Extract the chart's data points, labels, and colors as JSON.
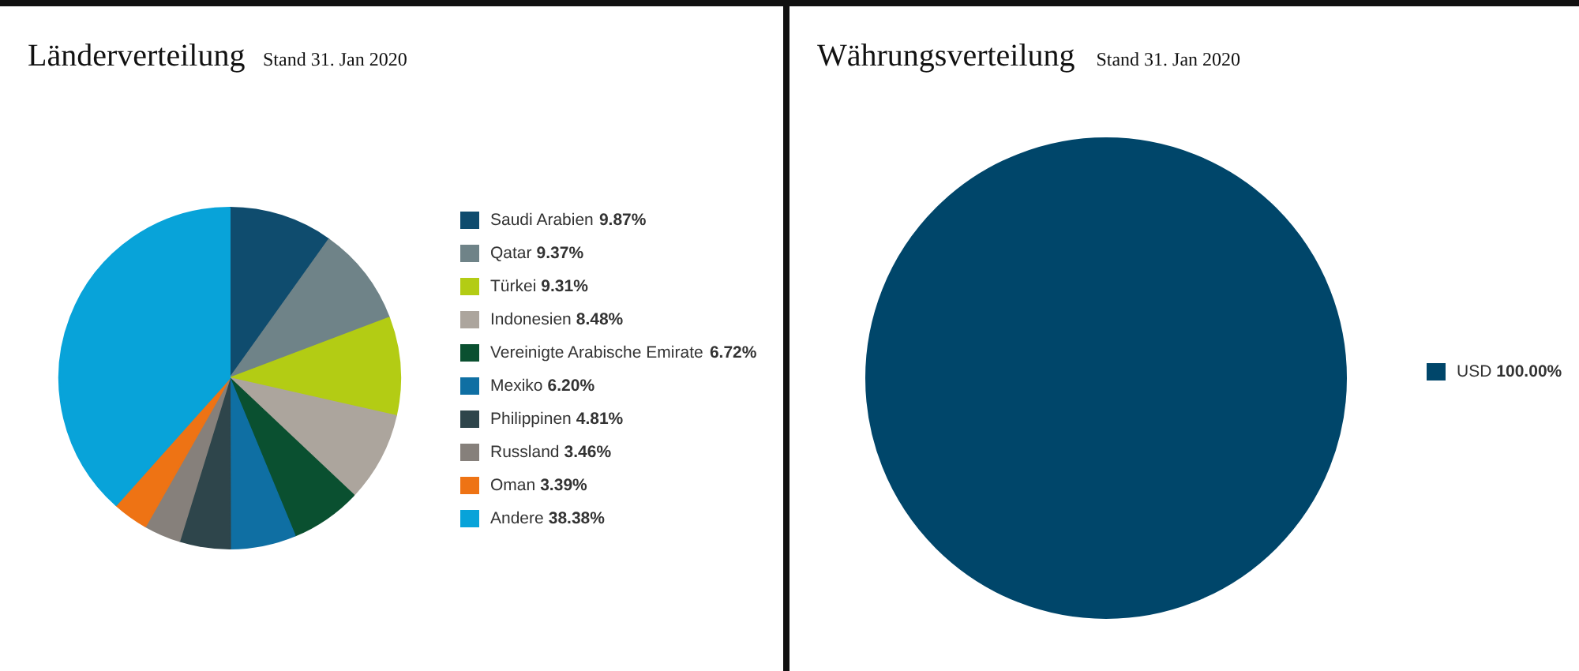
{
  "chart_data": [
    {
      "type": "pie",
      "title": "Länderverteilung",
      "subtitle": "Stand 31. Jan 2020",
      "legend": "right",
      "categories": [
        "Saudi Arabien",
        "Qatar",
        "Türkei",
        "Indonesien",
        "Vereinigte Arabische Emirate",
        "Mexiko",
        "Philippinen",
        "Russland",
        "Oman",
        "Andere"
      ],
      "values": [
        9.87,
        9.37,
        9.31,
        8.48,
        6.72,
        6.2,
        4.81,
        3.46,
        3.39,
        38.38
      ],
      "value_labels": [
        "9.87%",
        "9.37%",
        "9.31%",
        "8.48%",
        "6.72%",
        "6.20%",
        "4.81%",
        "3.46%",
        "3.39%",
        "38.38%"
      ],
      "colors": [
        "#0f4c6e",
        "#6f8388",
        "#b3cc14",
        "#aca59d",
        "#0a5030",
        "#0f6fa3",
        "#2e454b",
        "#86807b",
        "#ee7314",
        "#08a3d9"
      ]
    },
    {
      "type": "pie",
      "title": "Währungsverteilung",
      "subtitle": "Stand 31. Jan 2020",
      "legend": "right",
      "categories": [
        "USD"
      ],
      "values": [
        100.0
      ],
      "value_labels": [
        "100.00%"
      ],
      "colors": [
        "#00466a"
      ]
    }
  ]
}
